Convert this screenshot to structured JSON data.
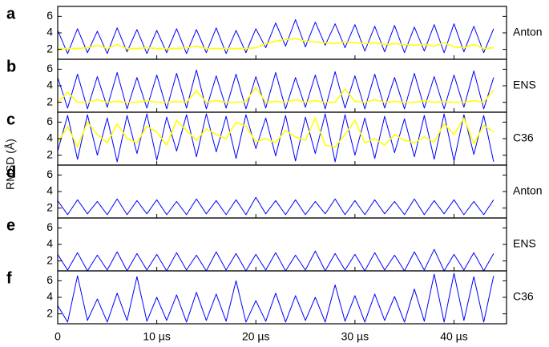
{
  "chart_data": {
    "type": "line",
    "y_label": "RMSD (Å)",
    "xlim": [
      0,
      45.3
    ],
    "xticks": [
      0,
      {
        "value": 10,
        "label": "10 µs"
      },
      {
        "value": 20,
        "label": "20 µs"
      },
      {
        "value": 30,
        "label": "30 µs"
      },
      {
        "value": 40,
        "label": "40 µs"
      }
    ],
    "x": [
      0,
      1,
      2,
      3,
      4,
      5,
      6,
      7,
      8,
      9,
      10,
      11,
      12,
      13,
      14,
      15,
      16,
      17,
      18,
      19,
      20,
      21,
      22,
      23,
      24,
      25,
      26,
      27,
      28,
      29,
      30,
      31,
      32,
      33,
      34,
      35,
      36,
      37,
      38,
      39,
      40,
      41,
      42,
      43,
      44
    ],
    "panels": [
      {
        "label": "a",
        "name": "Anton",
        "ylim": [
          0.8,
          7.2
        ],
        "yticks": [
          2,
          4,
          6
        ],
        "series": [
          {
            "color": "#0000ff",
            "values": [
              4.3,
              1.5,
              4.5,
              1.6,
              4.2,
              1.5,
              4.6,
              1.7,
              4.4,
              1.5,
              4.3,
              1.6,
              4.5,
              1.5,
              4.4,
              1.6,
              4.6,
              1.5,
              4.3,
              1.6,
              4.5,
              2.2,
              5.2,
              2.4,
              5.6,
              2.3,
              5.3,
              2.5,
              5.1,
              2.2,
              5.0,
              1.8,
              4.8,
              1.7,
              4.9,
              1.6,
              4.7,
              1.8,
              5.0,
              1.6,
              5.1,
              1.7,
              4.8,
              1.6,
              4.5
            ]
          },
          {
            "color": "#ffff00",
            "values": [
              2.1,
              2.1,
              2.1,
              2.2,
              2.5,
              2.1,
              2.6,
              2.1,
              2.1,
              2.2,
              2.1,
              2.1,
              2.1,
              2.2,
              2.4,
              2.1,
              2.1,
              2.1,
              2.1,
              2.1,
              2.2,
              2.7,
              3.0,
              3.2,
              3.3,
              3.0,
              2.9,
              2.8,
              2.7,
              2.9,
              2.8,
              2.7,
              2.8,
              2.6,
              2.7,
              2.6,
              2.5,
              2.6,
              2.4,
              2.8,
              2.3,
              2.2,
              2.6,
              2.1,
              2.2
            ]
          }
        ]
      },
      {
        "label": "b",
        "name": "ENS",
        "ylim": [
          0.8,
          7.2
        ],
        "yticks": [
          2,
          4,
          6
        ],
        "series": [
          {
            "color": "#0000ff",
            "values": [
              5.0,
              1.3,
              5.4,
              1.2,
              5.1,
              1.4,
              5.6,
              1.2,
              5.0,
              1.3,
              5.3,
              1.2,
              5.5,
              1.3,
              5.9,
              1.2,
              5.2,
              1.3,
              5.4,
              1.2,
              5.1,
              1.3,
              5.6,
              1.2,
              5.0,
              1.4,
              5.3,
              1.2,
              5.7,
              1.3,
              5.2,
              1.2,
              5.4,
              1.3,
              5.0,
              1.2,
              5.5,
              1.3,
              5.1,
              1.2,
              5.3,
              1.4,
              5.8,
              1.2,
              5.0
            ]
          },
          {
            "color": "#ffff00",
            "values": [
              2.0,
              3.2,
              2.0,
              2.0,
              2.3,
              2.0,
              2.1,
              2.0,
              2.0,
              2.2,
              2.0,
              2.0,
              2.1,
              2.0,
              3.4,
              2.0,
              2.2,
              2.0,
              2.0,
              2.1,
              3.8,
              2.0,
              2.1,
              2.0,
              2.3,
              2.0,
              2.2,
              2.0,
              2.0,
              3.6,
              2.1,
              2.0,
              2.3,
              2.0,
              2.1,
              2.0,
              2.0,
              2.2,
              2.0,
              2.1,
              2.0,
              2.0,
              2.2,
              2.0,
              3.5
            ]
          }
        ]
      },
      {
        "label": "c",
        "name": "C36",
        "ylim": [
          0.8,
          7.2
        ],
        "yticks": [
          2,
          4,
          6
        ],
        "series": [
          {
            "color": "#0000ff",
            "values": [
              2.5,
              6.8,
              1.5,
              6.9,
              2.0,
              6.5,
              1.2,
              6.8,
              2.2,
              7.0,
              1.4,
              6.6,
              2.5,
              6.9,
              1.8,
              7.0,
              2.4,
              6.7,
              1.6,
              6.9,
              2.8,
              6.5,
              1.9,
              6.8,
              1.3,
              6.6,
              2.2,
              7.0,
              1.2,
              6.9,
              2.0,
              6.5,
              1.6,
              6.7,
              2.3,
              6.4,
              1.8,
              6.8,
              1.5,
              7.0,
              1.3,
              6.9,
              2.1,
              6.8,
              1.2
            ]
          },
          {
            "color": "#ffff00",
            "values": [
              3.5,
              5.5,
              3.0,
              6.0,
              4.5,
              3.5,
              5.8,
              4.0,
              3.5,
              5.5,
              4.8,
              3.2,
              6.2,
              5.0,
              3.8,
              5.2,
              4.5,
              4.0,
              6.0,
              5.5,
              3.6,
              4.0,
              3.5,
              5.0,
              4.2,
              3.8,
              6.5,
              3.2,
              3.0,
              4.5,
              6.2,
              3.5,
              4.0,
              3.2,
              4.5,
              3.8,
              3.5,
              4.2,
              3.6,
              5.8,
              4.5,
              6.5,
              3.4,
              5.6,
              4.8
            ]
          }
        ]
      },
      {
        "label": "d",
        "name": "Anton",
        "ylim": [
          0.8,
          7.2
        ],
        "yticks": [
          2,
          4,
          6
        ],
        "series": [
          {
            "color": "#0000ff",
            "values": [
              2.9,
              1.2,
              3.0,
              1.3,
              2.8,
              1.2,
              3.1,
              1.2,
              2.9,
              1.3,
              3.0,
              1.2,
              2.8,
              1.2,
              3.1,
              1.3,
              2.9,
              1.2,
              3.0,
              1.2,
              3.3,
              1.3,
              2.9,
              1.2,
              3.0,
              1.2,
              2.8,
              1.3,
              3.1,
              1.2,
              2.9,
              1.2,
              3.0,
              1.3,
              2.8,
              1.2,
              3.1,
              1.2,
              2.9,
              1.3,
              3.0,
              1.2,
              2.8,
              1.2,
              3.0
            ]
          }
        ]
      },
      {
        "label": "e",
        "name": "ENS",
        "ylim": [
          0.8,
          7.2
        ],
        "yticks": [
          2,
          4,
          6
        ],
        "series": [
          {
            "color": "#0000ff",
            "values": [
              2.8,
              0.9,
              3.0,
              0.8,
              2.7,
              0.9,
              3.1,
              0.8,
              2.9,
              0.9,
              2.8,
              0.8,
              3.0,
              0.9,
              2.7,
              0.8,
              3.1,
              0.9,
              2.9,
              0.8,
              2.8,
              0.9,
              3.0,
              0.8,
              2.7,
              0.9,
              3.2,
              0.8,
              2.9,
              0.9,
              2.8,
              0.8,
              3.0,
              0.9,
              2.7,
              0.8,
              3.1,
              0.9,
              3.4,
              0.8,
              2.8,
              0.9,
              3.0,
              0.8,
              2.9
            ]
          }
        ]
      },
      {
        "label": "f",
        "name": "C36",
        "ylim": [
          0.8,
          7.2
        ],
        "yticks": [
          2,
          4,
          6
        ],
        "series": [
          {
            "color": "#0000ff",
            "values": [
              3.0,
              1.0,
              6.6,
              1.2,
              3.8,
              1.0,
              4.5,
              1.2,
              6.5,
              1.1,
              4.0,
              1.2,
              4.3,
              1.0,
              4.6,
              1.2,
              4.4,
              1.1,
              6.0,
              1.0,
              3.6,
              1.1,
              4.5,
              1.0,
              4.2,
              1.2,
              4.0,
              1.0,
              5.5,
              1.1,
              4.2,
              1.0,
              4.4,
              1.2,
              4.1,
              1.0,
              5.0,
              1.1,
              6.8,
              1.0,
              6.9,
              1.2,
              6.5,
              1.0,
              6.6
            ]
          }
        ]
      }
    ]
  }
}
